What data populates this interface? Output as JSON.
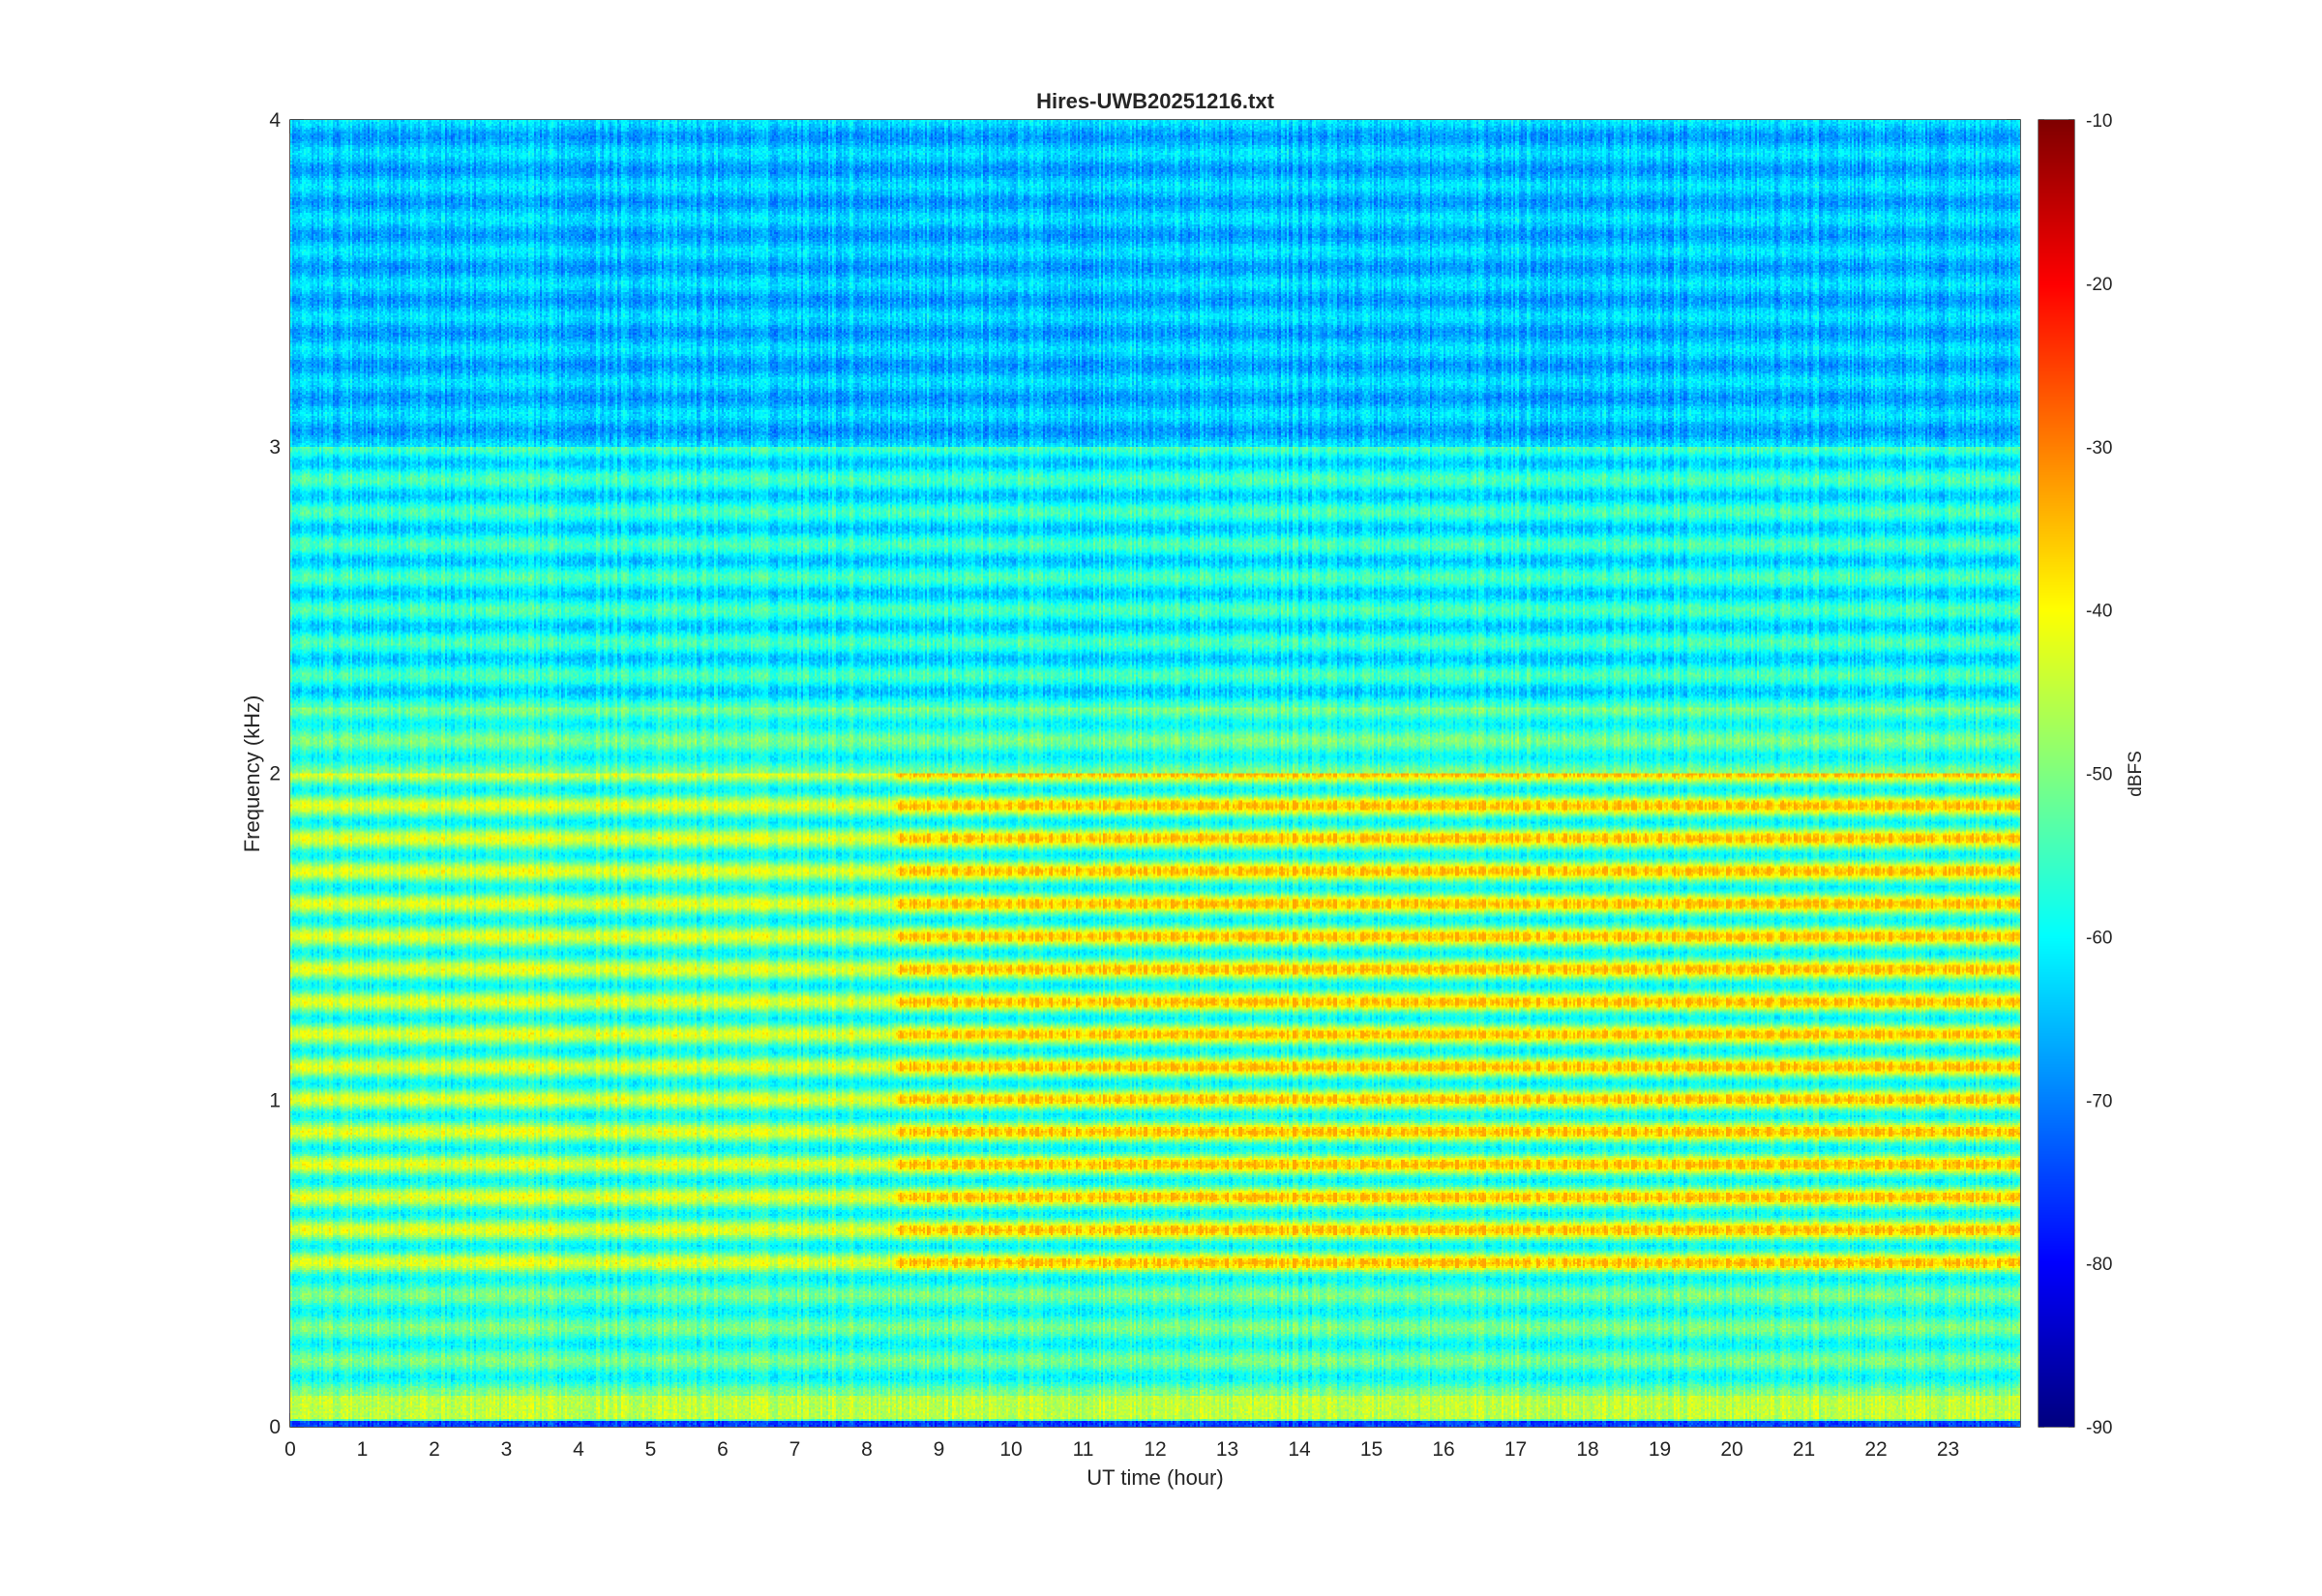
{
  "chart_data": {
    "type": "heatmap",
    "title": "Hires-UWB20251216.txt",
    "xlabel": "UT time (hour)",
    "ylabel": "Frequency (kHz)",
    "xlim": [
      0,
      24
    ],
    "ylim": [
      0,
      4
    ],
    "x_ticks": [
      "0",
      "1",
      "2",
      "3",
      "4",
      "5",
      "6",
      "7",
      "8",
      "9",
      "10",
      "11",
      "12",
      "13",
      "14",
      "15",
      "16",
      "17",
      "18",
      "19",
      "20",
      "21",
      "22",
      "23"
    ],
    "y_ticks": [
      "0",
      "1",
      "2",
      "3",
      "4"
    ],
    "colorbar": {
      "label": "dBFS",
      "colormap": "jet",
      "range": [
        -90,
        -10
      ],
      "ticks": [
        "-90",
        "-80",
        "-70",
        "-60",
        "-50",
        "-40",
        "-30",
        "-20",
        "-10"
      ]
    },
    "description_of_intensity": {
      "background_level_dBFS": -62,
      "high_freq_level_dBFS": -68,
      "peak_level_dBFS": -33,
      "enhanced_period_hours": [
        8.4,
        24
      ],
      "strong_band_kHz": [
        0.45,
        2.0
      ]
    }
  }
}
